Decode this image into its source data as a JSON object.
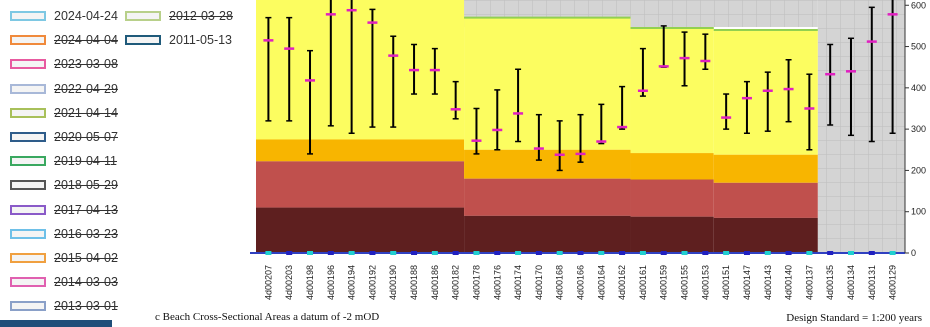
{
  "legend": {
    "left_column": [
      {
        "label": "2024-04-24",
        "color": "#7ec8e3",
        "struck": false
      },
      {
        "label": "2024-04-04",
        "color": "#f08a3c",
        "struck": true
      },
      {
        "label": "2023-03-08",
        "color": "#e85aa0",
        "struck": true
      },
      {
        "label": "2022-04-29",
        "color": "#a8b8d8",
        "struck": true
      },
      {
        "label": "2021-04-14",
        "color": "#a8c05a",
        "struck": true
      },
      {
        "label": "2020-05-07",
        "color": "#2e5c8a",
        "struck": true
      },
      {
        "label": "2019-04-11",
        "color": "#3aa860",
        "struck": true
      },
      {
        "label": "2018-05-29",
        "color": "#555555",
        "struck": true
      },
      {
        "label": "2017-04-13",
        "color": "#8a5ac8",
        "struck": true
      },
      {
        "label": "2016-03-23",
        "color": "#6ec0e8",
        "struck": true
      },
      {
        "label": "2015-04-02",
        "color": "#f0a040",
        "struck": true
      },
      {
        "label": "2014-03-03",
        "color": "#e060b0",
        "struck": true
      },
      {
        "label": "2013-03-01",
        "color": "#8aa0c8",
        "struck": true
      }
    ],
    "right_column": [
      {
        "label": "2012-03-28",
        "color": "#b8d08a",
        "struck": true
      },
      {
        "label": "2011-05-13",
        "color": "#1f5a7a",
        "struck": false
      }
    ]
  },
  "footer": {
    "caption": "c Beach Cross-Sectional Areas  a datum of -2 mOD",
    "standard": "Design Standard = 1:200 years"
  },
  "chart_data": {
    "type": "bar",
    "categories": [
      "4d00207",
      "4d00203",
      "4d00198",
      "4d00196",
      "4d00194",
      "4d00192",
      "4d00190",
      "4d00188",
      "4d00186",
      "4d00182",
      "4d00178",
      "4d00176",
      "4d00174",
      "4d00170",
      "4d00168",
      "4d00166",
      "4d00164",
      "4d00162",
      "4d00161",
      "4d00159",
      "4d00155",
      "4d00153",
      "4d00151",
      "4d00147",
      "4d00143",
      "4d00140",
      "4d00137",
      "4d00135",
      "4d00134",
      "4d00131",
      "4d00129"
    ],
    "ylim": [
      0,
      620
    ],
    "yticks": [
      0,
      100,
      200,
      300,
      400,
      500,
      600
    ],
    "y_tick_labels": [
      "0",
      "100",
      "200",
      "300",
      "400",
      "500",
      "600"
    ],
    "banded_segments": [
      {
        "from": "4d00207",
        "to": "4d00182",
        "dark": 110,
        "red": 222,
        "orange": 275,
        "yellow": 630
      },
      {
        "from": "4d00178",
        "to": "4d00162",
        "dark": 90,
        "red": 180,
        "orange": 250,
        "yellow": 570
      },
      {
        "from": "4d00161",
        "to": "4d00153",
        "dark": 88,
        "red": 178,
        "orange": 242,
        "yellow": 545
      },
      {
        "from": "4d00151",
        "to": "4d00137",
        "dark": 85,
        "red": 170,
        "orange": 238,
        "yellow": 540
      }
    ],
    "gray_hatched_from": "4d00135",
    "series": [
      {
        "mean": [
          515,
          495,
          418,
          578,
          588,
          558,
          478,
          443,
          443,
          348,
          272,
          298,
          338,
          253,
          238,
          240,
          270,
          305,
          393,
          452,
          472,
          465,
          328,
          375,
          393,
          397,
          350,
          433,
          440,
          512,
          578
        ],
        "max": [
          570,
          570,
          490,
          630,
          630,
          590,
          525,
          505,
          495,
          415,
          350,
          395,
          445,
          335,
          320,
          335,
          360,
          403,
          495,
          550,
          535,
          530,
          385,
          415,
          438,
          468,
          433,
          505,
          520,
          595,
          630
        ],
        "min": [
          320,
          320,
          240,
          308,
          290,
          305,
          305,
          385,
          385,
          325,
          240,
          250,
          270,
          225,
          200,
          220,
          265,
          300,
          380,
          450,
          405,
          445,
          300,
          290,
          295,
          318,
          250,
          310,
          285,
          270,
          290
        ]
      }
    ]
  }
}
